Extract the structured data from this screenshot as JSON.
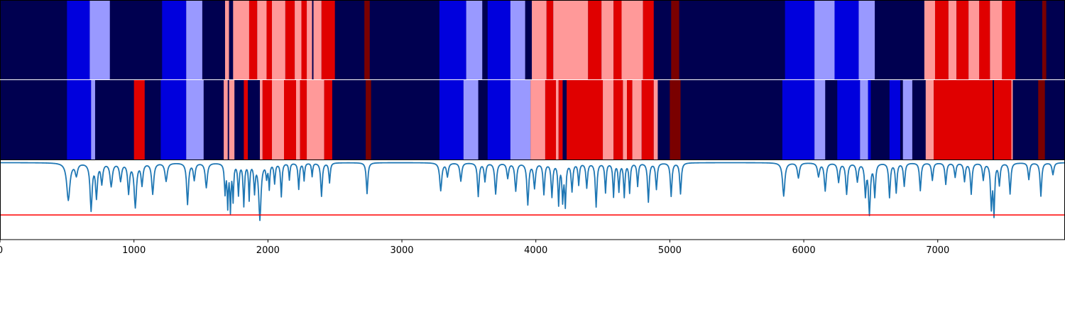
{
  "colors": {
    "dark_navy": "#000050",
    "blue": "#0000dd",
    "light_blue": "#9999ff",
    "red": "#e00000",
    "light_red": "#ff9999",
    "dark_red": "#7a0000",
    "signal_line": "#1f77b4",
    "threshold_line": "#ff0000",
    "frame": "#000000"
  },
  "chart_data": [
    {
      "type": "heatmap",
      "name": "track-1",
      "background": "dark_navy",
      "segments": [
        [
          500,
          670,
          "blue"
        ],
        [
          670,
          820,
          "light_blue"
        ],
        [
          1210,
          1390,
          "blue"
        ],
        [
          1390,
          1510,
          "light_blue"
        ],
        [
          1680,
          1710,
          "light_red"
        ],
        [
          1710,
          1740,
          "dark_navy"
        ],
        [
          1740,
          1860,
          "light_red"
        ],
        [
          1860,
          1920,
          "red"
        ],
        [
          1920,
          1990,
          "light_red"
        ],
        [
          1990,
          2030,
          "red"
        ],
        [
          2030,
          2130,
          "light_red"
        ],
        [
          2130,
          2200,
          "red"
        ],
        [
          2200,
          2250,
          "light_red"
        ],
        [
          2250,
          2290,
          "red"
        ],
        [
          2290,
          2330,
          "light_red"
        ],
        [
          2330,
          2340,
          "dark_navy"
        ],
        [
          2340,
          2400,
          "light_red"
        ],
        [
          2400,
          2500,
          "red"
        ],
        [
          2720,
          2760,
          "dark_red"
        ],
        [
          3280,
          3480,
          "blue"
        ],
        [
          3480,
          3600,
          "light_blue"
        ],
        [
          3640,
          3810,
          "blue"
        ],
        [
          3810,
          3920,
          "light_blue"
        ],
        [
          3970,
          4080,
          "light_red"
        ],
        [
          4080,
          4130,
          "red"
        ],
        [
          4130,
          4390,
          "light_red"
        ],
        [
          4390,
          4490,
          "red"
        ],
        [
          4490,
          4580,
          "light_red"
        ],
        [
          4580,
          4640,
          "red"
        ],
        [
          4640,
          4800,
          "light_red"
        ],
        [
          4800,
          4880,
          "red"
        ],
        [
          5010,
          5070,
          "dark_red"
        ],
        [
          5860,
          6080,
          "blue"
        ],
        [
          6080,
          6230,
          "light_blue"
        ],
        [
          6230,
          6410,
          "blue"
        ],
        [
          6410,
          6530,
          "light_blue"
        ],
        [
          6900,
          6980,
          "light_red"
        ],
        [
          6980,
          7080,
          "red"
        ],
        [
          7080,
          7140,
          "light_red"
        ],
        [
          7140,
          7230,
          "red"
        ],
        [
          7230,
          7310,
          "light_red"
        ],
        [
          7310,
          7390,
          "red"
        ],
        [
          7390,
          7480,
          "light_red"
        ],
        [
          7480,
          7580,
          "red"
        ],
        [
          7780,
          7810,
          "dark_red"
        ]
      ]
    },
    {
      "type": "heatmap",
      "name": "track-2",
      "background": "dark_navy",
      "segments": [
        [
          500,
          680,
          "blue"
        ],
        [
          680,
          710,
          "light_blue"
        ],
        [
          1000,
          1080,
          "red"
        ],
        [
          1200,
          1390,
          "blue"
        ],
        [
          1390,
          1520,
          "light_blue"
        ],
        [
          1670,
          1700,
          "light_red"
        ],
        [
          1710,
          1750,
          "light_red"
        ],
        [
          1820,
          1850,
          "red"
        ],
        [
          1940,
          1960,
          "light_red"
        ],
        [
          1960,
          2030,
          "red"
        ],
        [
          2030,
          2120,
          "light_red"
        ],
        [
          2120,
          2210,
          "red"
        ],
        [
          2210,
          2240,
          "light_red"
        ],
        [
          2240,
          2290,
          "red"
        ],
        [
          2290,
          2420,
          "light_red"
        ],
        [
          2420,
          2480,
          "red"
        ],
        [
          2730,
          2770,
          "dark_red"
        ],
        [
          3280,
          3460,
          "blue"
        ],
        [
          3460,
          3570,
          "light_blue"
        ],
        [
          3640,
          3810,
          "blue"
        ],
        [
          3810,
          3960,
          "light_blue"
        ],
        [
          3960,
          4070,
          "light_red"
        ],
        [
          4070,
          4150,
          "red"
        ],
        [
          4150,
          4170,
          "light_red"
        ],
        [
          4170,
          4200,
          "red"
        ],
        [
          4230,
          4500,
          "red"
        ],
        [
          4500,
          4580,
          "light_red"
        ],
        [
          4580,
          4650,
          "red"
        ],
        [
          4650,
          4680,
          "light_red"
        ],
        [
          4680,
          4720,
          "red"
        ],
        [
          4720,
          4790,
          "light_red"
        ],
        [
          4790,
          4880,
          "red"
        ],
        [
          4880,
          4910,
          "light_red"
        ],
        [
          5000,
          5080,
          "dark_red"
        ],
        [
          5840,
          6080,
          "blue"
        ],
        [
          6080,
          6160,
          "light_blue"
        ],
        [
          6250,
          6420,
          "blue"
        ],
        [
          6420,
          6480,
          "light_blue"
        ],
        [
          6480,
          6500,
          "blue"
        ],
        [
          6640,
          6720,
          "blue"
        ],
        [
          6740,
          6810,
          "light_blue"
        ],
        [
          6910,
          6970,
          "light_red"
        ],
        [
          6970,
          7410,
          "red"
        ],
        [
          7420,
          7550,
          "red"
        ],
        [
          7550,
          7560,
          "light_red"
        ],
        [
          7750,
          7800,
          "dark_red"
        ]
      ]
    },
    {
      "type": "line",
      "name": "signal",
      "xlim": [
        0,
        7950
      ],
      "ylim": [
        0,
        1
      ],
      "threshold": 0.31,
      "x_ticks": [
        0,
        1000,
        2000,
        3000,
        4000,
        5000,
        6000,
        7000
      ],
      "x_tick_labels": [
        "0",
        "1000",
        "2000",
        "3000",
        "4000",
        "5000",
        "6000",
        "7000"
      ],
      "baseline": 0.97,
      "dips": [
        [
          510,
          0.5,
          14
        ],
        [
          570,
          0.82,
          10
        ],
        [
          680,
          0.38,
          9
        ],
        [
          720,
          0.55,
          8
        ],
        [
          760,
          0.72,
          8
        ],
        [
          830,
          0.68,
          10
        ],
        [
          900,
          0.75,
          9
        ],
        [
          960,
          0.6,
          8
        ],
        [
          1010,
          0.42,
          10
        ],
        [
          1060,
          0.7,
          8
        ],
        [
          1140,
          0.58,
          9
        ],
        [
          1240,
          0.74,
          10
        ],
        [
          1400,
          0.45,
          8
        ],
        [
          1450,
          0.76,
          8
        ],
        [
          1540,
          0.66,
          9
        ],
        [
          1680,
          0.6,
          6
        ],
        [
          1700,
          0.45,
          5
        ],
        [
          1720,
          0.4,
          5
        ],
        [
          1740,
          0.52,
          5
        ],
        [
          1780,
          0.58,
          6
        ],
        [
          1820,
          0.44,
          6
        ],
        [
          1860,
          0.52,
          5
        ],
        [
          1900,
          0.62,
          6
        ],
        [
          1940,
          0.26,
          10
        ],
        [
          1990,
          0.8,
          6
        ],
        [
          2010,
          0.66,
          5
        ],
        [
          2050,
          0.72,
          6
        ],
        [
          2100,
          0.55,
          6
        ],
        [
          2160,
          0.76,
          5
        ],
        [
          2230,
          0.64,
          6
        ],
        [
          2270,
          0.75,
          5
        ],
        [
          2330,
          0.8,
          5
        ],
        [
          2400,
          0.55,
          7
        ],
        [
          2460,
          0.72,
          6
        ],
        [
          2740,
          0.58,
          7
        ],
        [
          3290,
          0.62,
          9
        ],
        [
          3340,
          0.8,
          8
        ],
        [
          3440,
          0.74,
          8
        ],
        [
          3570,
          0.55,
          7
        ],
        [
          3620,
          0.74,
          7
        ],
        [
          3700,
          0.58,
          8
        ],
        [
          3790,
          0.78,
          8
        ],
        [
          3850,
          0.62,
          8
        ],
        [
          3940,
          0.45,
          8
        ],
        [
          3990,
          0.66,
          8
        ],
        [
          4060,
          0.58,
          7
        ],
        [
          4120,
          0.55,
          7
        ],
        [
          4170,
          0.46,
          6
        ],
        [
          4200,
          0.52,
          6
        ],
        [
          4220,
          0.45,
          6
        ],
        [
          4270,
          0.62,
          7
        ],
        [
          4320,
          0.7,
          6
        ],
        [
          4380,
          0.66,
          7
        ],
        [
          4450,
          0.42,
          7
        ],
        [
          4520,
          0.6,
          6
        ],
        [
          4580,
          0.55,
          6
        ],
        [
          4620,
          0.62,
          6
        ],
        [
          4660,
          0.55,
          6
        ],
        [
          4700,
          0.6,
          6
        ],
        [
          4760,
          0.68,
          6
        ],
        [
          4840,
          0.48,
          7
        ],
        [
          4900,
          0.64,
          7
        ],
        [
          5010,
          0.55,
          7
        ],
        [
          5080,
          0.58,
          7
        ],
        [
          5850,
          0.55,
          10
        ],
        [
          5960,
          0.78,
          9
        ],
        [
          6110,
          0.8,
          9
        ],
        [
          6160,
          0.62,
          8
        ],
        [
          6260,
          0.73,
          8
        ],
        [
          6320,
          0.58,
          8
        ],
        [
          6400,
          0.74,
          8
        ],
        [
          6460,
          0.58,
          7
        ],
        [
          6490,
          0.34,
          8
        ],
        [
          6530,
          0.56,
          7
        ],
        [
          6640,
          0.54,
          7
        ],
        [
          6690,
          0.6,
          7
        ],
        [
          6750,
          0.68,
          7
        ],
        [
          6870,
          0.62,
          7
        ],
        [
          6960,
          0.75,
          7
        ],
        [
          7060,
          0.7,
          7
        ],
        [
          7130,
          0.79,
          7
        ],
        [
          7200,
          0.74,
          7
        ],
        [
          7250,
          0.58,
          7
        ],
        [
          7340,
          0.76,
          7
        ],
        [
          7400,
          0.42,
          7
        ],
        [
          7420,
          0.35,
          6
        ],
        [
          7460,
          0.7,
          7
        ],
        [
          7540,
          0.58,
          7
        ],
        [
          7680,
          0.76,
          7
        ],
        [
          7770,
          0.55,
          7
        ],
        [
          7860,
          0.82,
          8
        ]
      ]
    }
  ]
}
